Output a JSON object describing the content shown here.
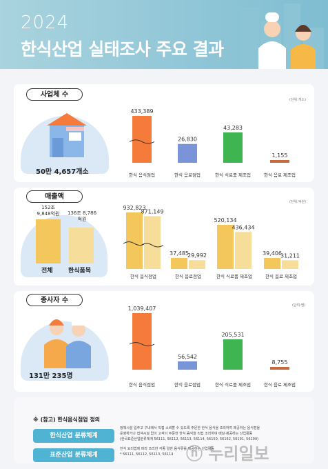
{
  "header": {
    "year": "2024",
    "title": "한식산업 실태조사 주요 결과"
  },
  "sections": {
    "businesses": {
      "label": "사업체 수",
      "unit": "(단위:개소)",
      "total": "50만 4,657개소"
    },
    "sales": {
      "label": "매출액",
      "unit": "(단위:억원)",
      "total_label": "전체",
      "total_value": "152조 9,848억원",
      "hansik_label": "한식품목",
      "hansik_value": "136조 8,786억원"
    },
    "employees": {
      "label": "종사자 수",
      "unit": "(단위:명)",
      "total": "131만 235명"
    }
  },
  "chart_data": [
    {
      "type": "bar",
      "title": "사업체 수",
      "categories": [
        "한식 음식점업",
        "한식 음료점업",
        "한식 식료품 제조업",
        "한식 음료 제조업"
      ],
      "values": [
        433389,
        26830,
        43283,
        1155
      ],
      "value_labels": [
        "433,389",
        "26,830",
        "43,283",
        "1,155"
      ]
    },
    {
      "type": "bar",
      "title": "매출액",
      "categories": [
        "한식 음식점업",
        "한식 음료점업",
        "한식 식료품 제조업",
        "한식 음료 제조업"
      ],
      "series": [
        {
          "values": [
            932823,
            37485,
            520134,
            39406
          ],
          "value_labels": [
            "932,823",
            "37,485",
            "520,134",
            "39,406"
          ]
        },
        {
          "values": [
            871149,
            29992,
            436434,
            31211
          ],
          "value_labels": [
            "871,149",
            "29,992",
            "436,434",
            "31,211"
          ]
        }
      ]
    },
    {
      "type": "bar",
      "title": "종사자 수",
      "categories": [
        "한식 음식점업",
        "한식 음료점업",
        "한식 식료품 제조업",
        "한식 음료 제조업"
      ],
      "values": [
        1039407,
        56542,
        205531,
        8755
      ],
      "value_labels": [
        "1,039,407",
        "56,542",
        "205,531",
        "8,755"
      ]
    }
  ],
  "colors": {
    "c1": "#f47b3a",
    "c2": "#7a94d8",
    "c3": "#3fb552",
    "c4": "#c56a3d",
    "gold": "#f3c75c",
    "gold_light": "#f7dd9a"
  },
  "footer": {
    "title": "※ (참고) 한식음식점업 정의",
    "items": [
      {
        "label": "한식산업 분류체계",
        "desc1": "정책시설 입주고 구내에서 직접 소비할 수 있도록 주문한 한식 음식을 조리하여 제공하는 음식점을",
        "desc2": "운영하거나 접객시설 없이 고객이 주문한 한식 음식을 직접 조리하여 배달·제공하는 산업활동",
        "desc3": "(한국표준산업분류체계 56111, 56112, 56113, 56114, 56150, 56162, 56191, 56199)"
      },
      {
        "label": "표준산업 분류체계",
        "desc1": "한식 요리법에 따라 조리한 각종 일반 음식류를 제공하는 산업활동",
        "desc2": "* 56111, 56112, 56113, 56114",
        "desc3": ""
      }
    ]
  },
  "watermark": "ⓝ 누리일보"
}
